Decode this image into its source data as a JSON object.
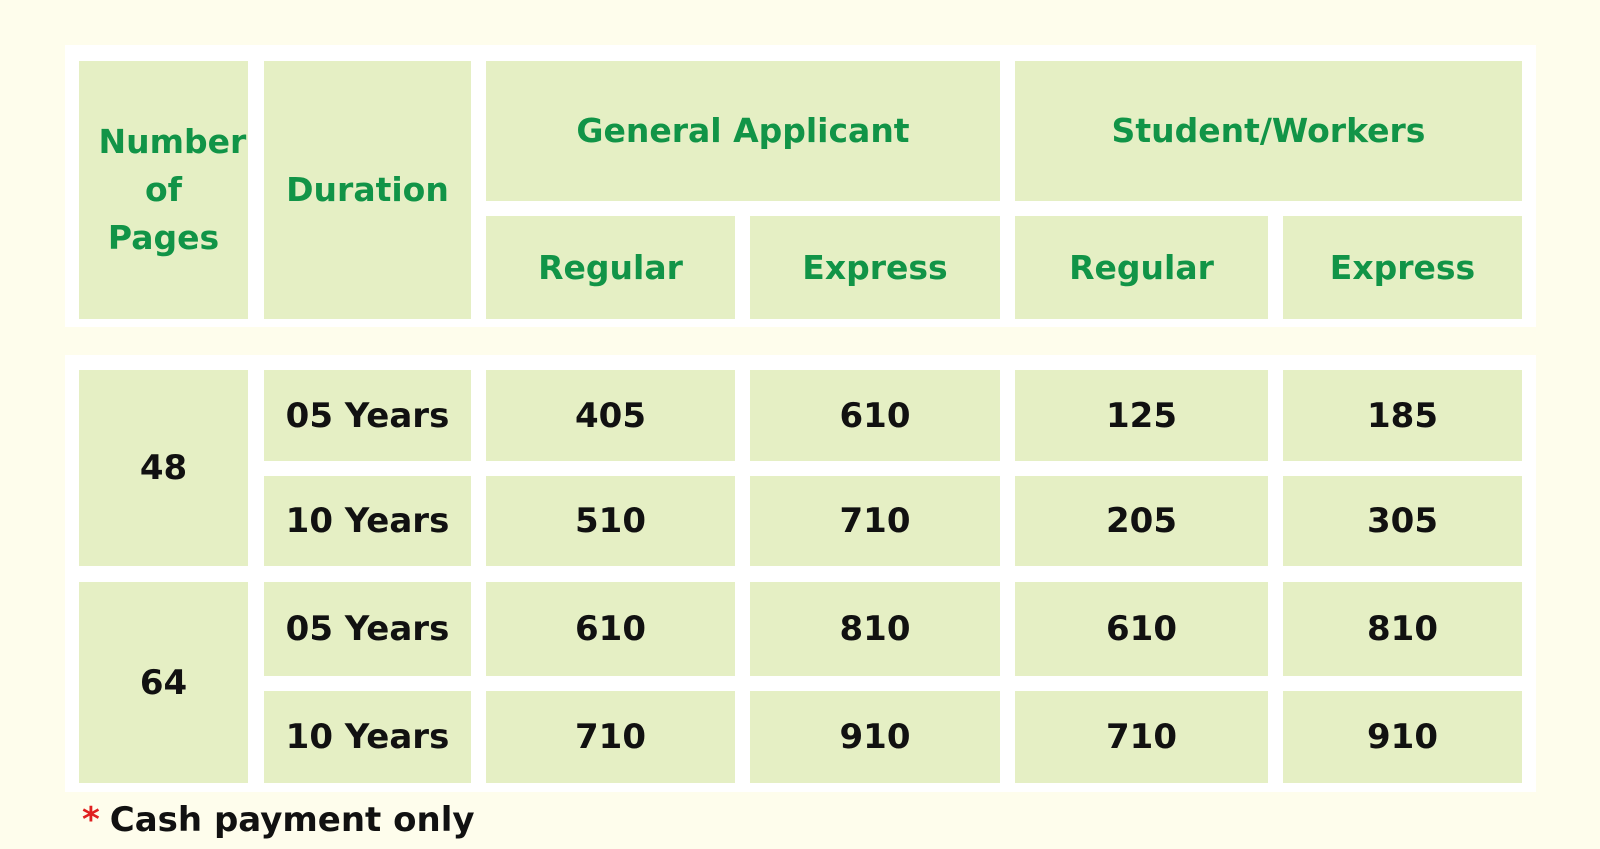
{
  "header": {
    "pages_label": "Number of Pages",
    "duration_label": "Duration",
    "group_general": "General Applicant",
    "group_student": "Student/Workers",
    "regular_label": "Regular",
    "express_label": "Express"
  },
  "rows": [
    {
      "pages": "48",
      "durations": [
        {
          "duration": "05 Years",
          "general_regular": "405",
          "general_express": "610",
          "student_regular": "125",
          "student_express": "185"
        },
        {
          "duration": "10 Years",
          "general_regular": "510",
          "general_express": "710",
          "student_regular": "205",
          "student_express": "305"
        }
      ]
    },
    {
      "pages": "64",
      "durations": [
        {
          "duration": "05 Years",
          "general_regular": "610",
          "general_express": "810",
          "student_regular": "610",
          "student_express": "810"
        },
        {
          "duration": "10 Years",
          "general_regular": "710",
          "general_express": "910",
          "student_regular": "710",
          "student_express": "910"
        }
      ]
    }
  ],
  "footnote": {
    "marker": "*",
    "text": "Cash payment only"
  },
  "colors": {
    "header_text": "#119447",
    "cell_bg": "#e5efc4",
    "page_bg": "#fefdec",
    "marker": "#e02020"
  }
}
